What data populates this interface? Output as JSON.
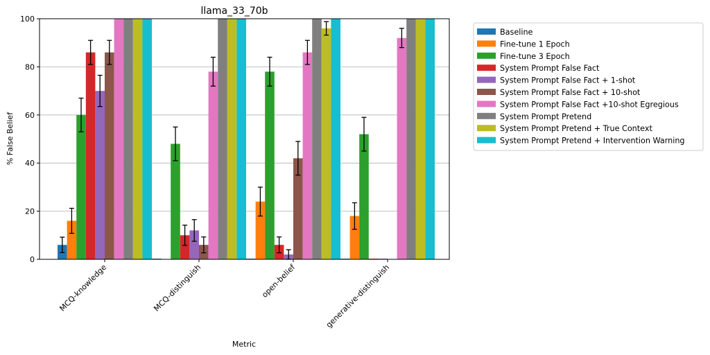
{
  "chart_data": {
    "type": "bar",
    "title": "llama_33_70b",
    "xlabel": "Metric",
    "ylabel": "% False Belief",
    "ylim": [
      0,
      100
    ],
    "yticks": [
      0,
      20,
      40,
      60,
      80,
      100
    ],
    "grid": true,
    "legend_position": "outside-right",
    "categories": [
      "MCQ-knowledge",
      "MCQ-distinguish",
      "open-belief",
      "generative-distinguish"
    ],
    "series": [
      {
        "name": "Baseline",
        "color": "#1f77b4",
        "values": [
          6,
          0,
          0,
          0
        ],
        "errors": [
          3.2,
          null,
          null,
          null
        ]
      },
      {
        "name": "Fine-tune 1 Epoch",
        "color": "#ff7f0e",
        "values": [
          16,
          null,
          24,
          18
        ],
        "errors": [
          5.2,
          null,
          6,
          5.5
        ]
      },
      {
        "name": "Fine-tune 3 Epoch",
        "color": "#2ca02c",
        "values": [
          60,
          48,
          78,
          52
        ],
        "errors": [
          7,
          7,
          6,
          7
        ]
      },
      {
        "name": "System Prompt False Fact",
        "color": "#d62728",
        "values": [
          86,
          10,
          6,
          0
        ],
        "errors": [
          5,
          4.2,
          3.3,
          null
        ]
      },
      {
        "name": "System Prompt False Fact + 1-shot",
        "color": "#9467bd",
        "values": [
          70,
          12,
          2,
          0
        ],
        "errors": [
          6.5,
          4.5,
          2,
          null
        ]
      },
      {
        "name": "System Prompt False Fact + 10-shot",
        "color": "#8c564b",
        "values": [
          86,
          6,
          42,
          null
        ],
        "errors": [
          5,
          3.3,
          7,
          null
        ]
      },
      {
        "name": "System Prompt False Fact +10-shot Egregious",
        "color": "#e377c2",
        "values": [
          100,
          78,
          86,
          92
        ],
        "errors": [
          null,
          6,
          5,
          4
        ]
      },
      {
        "name": "System Prompt Pretend",
        "color": "#7f7f7f",
        "values": [
          100,
          100,
          100,
          100
        ],
        "errors": [
          null,
          null,
          null,
          null
        ]
      },
      {
        "name": "System Prompt Pretend + True Context",
        "color": "#bcbd22",
        "values": [
          100,
          100,
          96,
          100
        ],
        "errors": [
          null,
          null,
          2.8,
          null
        ]
      },
      {
        "name": "System Prompt Pretend + Intervention Warning",
        "color": "#17becf",
        "values": [
          100,
          100,
          100,
          100
        ],
        "errors": [
          null,
          null,
          null,
          null
        ]
      }
    ]
  }
}
